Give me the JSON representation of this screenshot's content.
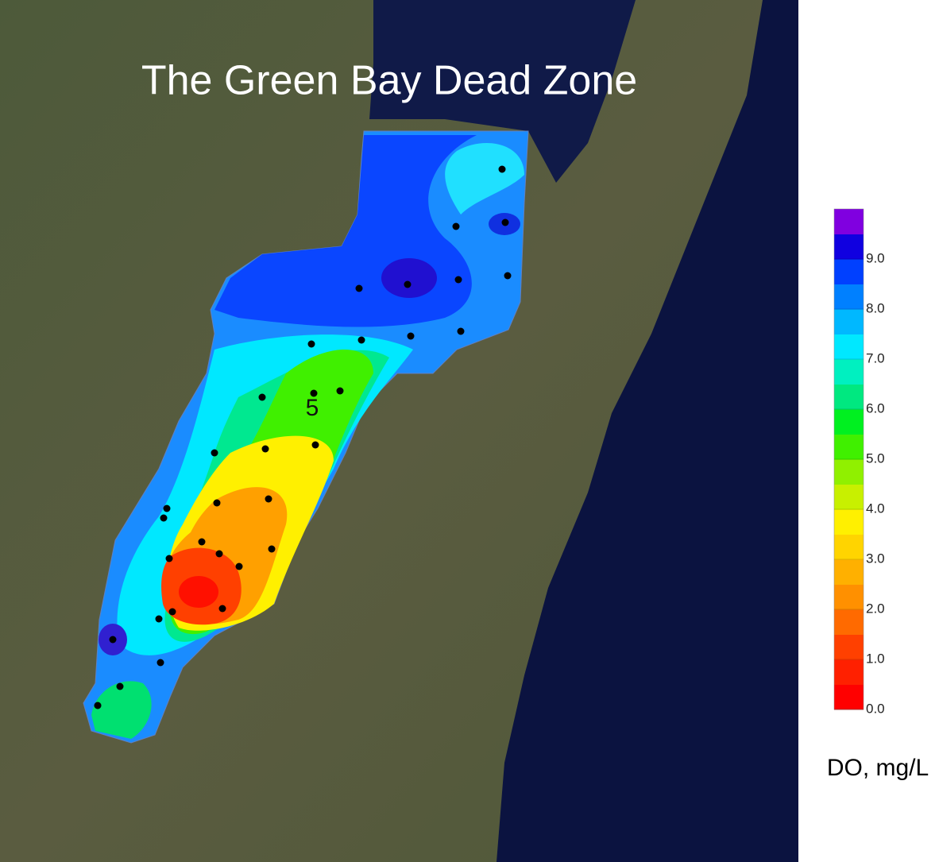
{
  "title": "The Green Bay Dead Zone",
  "station_label": "5",
  "colorbar": {
    "label": "DO, mg/L",
    "range": [
      0,
      10
    ],
    "colors": [
      "#ff0000",
      "#ff2000",
      "#ff4000",
      "#ff6a00",
      "#ff9000",
      "#ffb000",
      "#ffd400",
      "#fff000",
      "#c8f000",
      "#90f000",
      "#40f000",
      "#00f020",
      "#00e880",
      "#00f0c0",
      "#00e8ff",
      "#00b8ff",
      "#0080ff",
      "#0040ff",
      "#1000e0",
      "#8000e0"
    ],
    "ticks": [
      {
        "value": 0,
        "label": "0.0"
      },
      {
        "value": 1,
        "label": "1.0"
      },
      {
        "value": 2,
        "label": "2.0"
      },
      {
        "value": 3,
        "label": "3.0"
      },
      {
        "value": 4,
        "label": "4.0"
      },
      {
        "value": 5,
        "label": "5.0"
      },
      {
        "value": 6,
        "label": "6.0"
      },
      {
        "value": 7,
        "label": "7.0"
      },
      {
        "value": 8,
        "label": "8.0"
      },
      {
        "value": 9,
        "label": "9.0"
      }
    ]
  }
}
